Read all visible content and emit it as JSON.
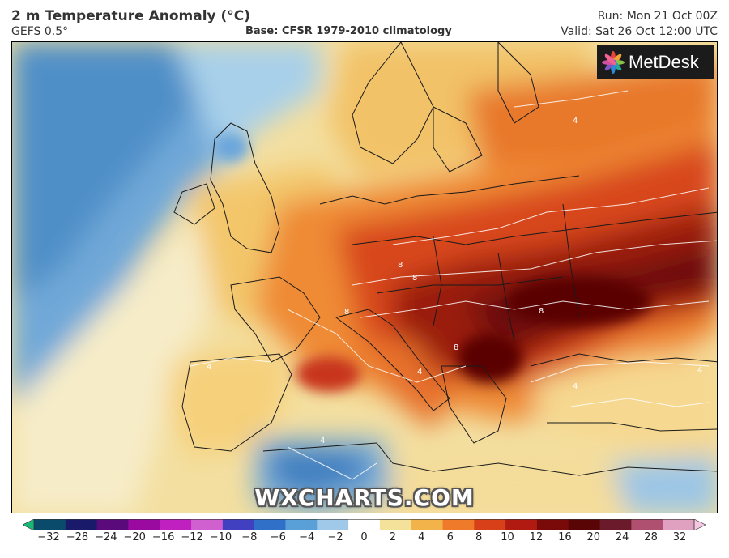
{
  "header": {
    "title": "2 m Temperature Anomaly (°C)",
    "model": "GEFS 0.5°",
    "base": "Base: CFSR 1979-2010 climatology",
    "run": "Run: Mon 21 Oct 00Z",
    "valid": "Valid: Sat 26 Oct 12:00 UTC"
  },
  "logo": {
    "text": "MetDesk",
    "icon": "metdesk-flower-icon"
  },
  "watermark": "WXCHARTS.COM",
  "colorbar": {
    "ticks": [
      "−32",
      "−28",
      "−24",
      "−20",
      "−16",
      "−12",
      "−10",
      "−8",
      "−6",
      "−4",
      "−2",
      "0",
      "2",
      "4",
      "6",
      "8",
      "10",
      "12",
      "16",
      "20",
      "24",
      "28",
      "32"
    ],
    "colors": [
      "#18b878",
      "#0a4a6a",
      "#1a1a6a",
      "#5a0a7a",
      "#9a0aa0",
      "#c020c0",
      "#d060d0",
      "#4040c0",
      "#3070c8",
      "#5aa0d8",
      "#a0c8e8",
      "#ffffff",
      "#f4e29a",
      "#f2b44a",
      "#ee7a2a",
      "#d8401a",
      "#b01a10",
      "#7a0a0a",
      "#5a0505",
      "#6a1a2a",
      "#b05070",
      "#e0a0c0",
      "#f4c8e0"
    ]
  },
  "contour_labels": [
    "4",
    "4",
    "8",
    "8",
    "8",
    "8",
    "8",
    "4",
    "4",
    "4",
    "4"
  ]
}
